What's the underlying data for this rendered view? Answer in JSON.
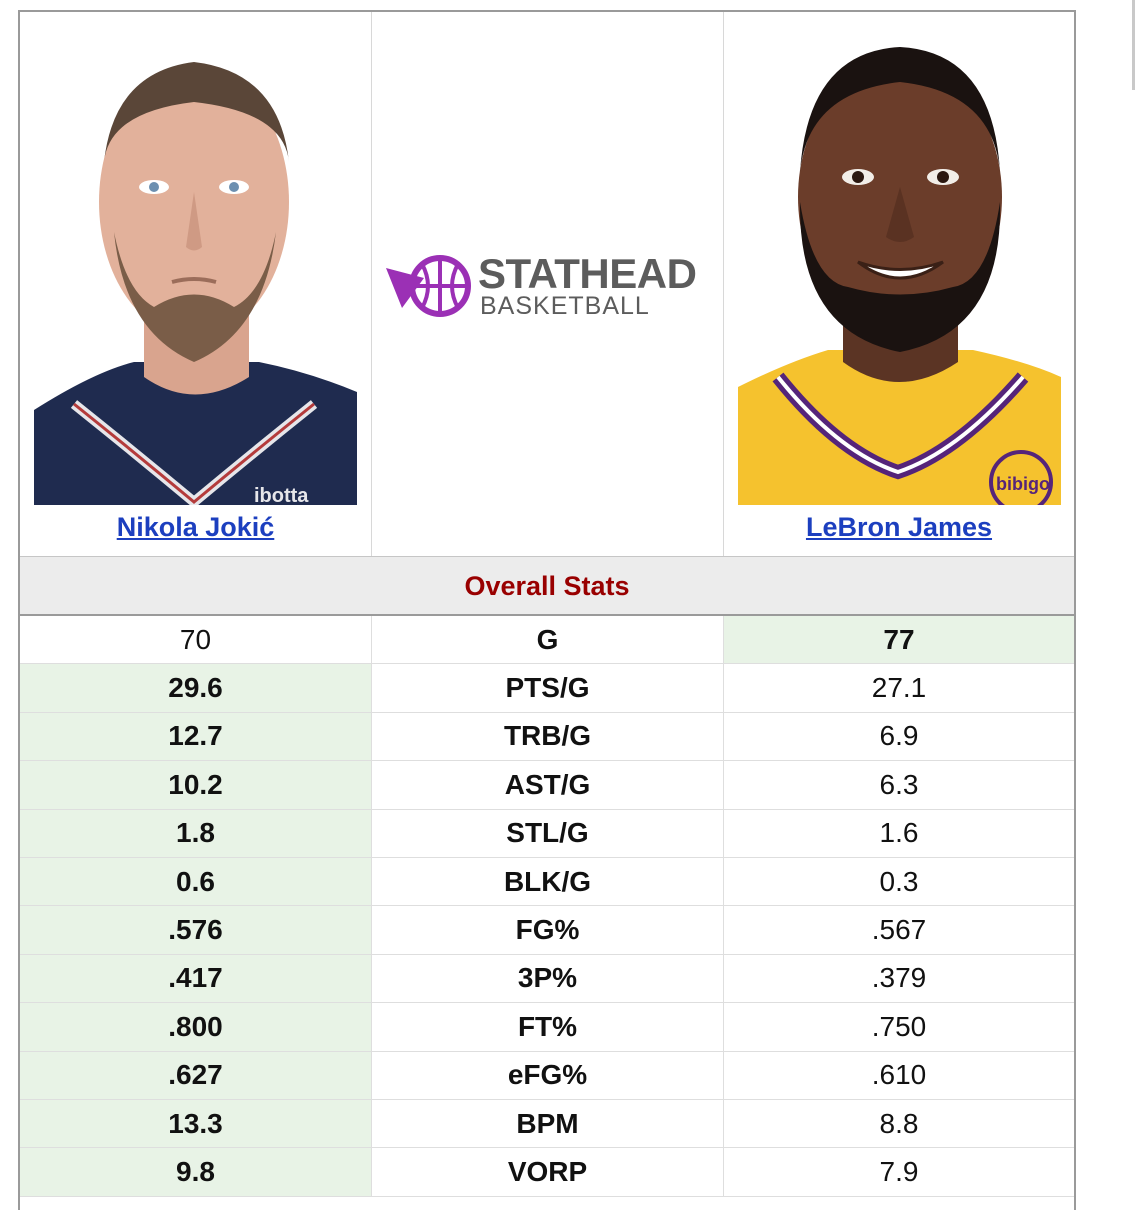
{
  "players": {
    "left": {
      "name": "Nikola Jokić",
      "jersey_text": "ibotta"
    },
    "right": {
      "name": "LeBron James",
      "jersey_text": "bibigo"
    }
  },
  "logo": {
    "line1": "STATHEAD",
    "line2": "BASKETBALL"
  },
  "section_title": "Overall Stats",
  "stats": [
    {
      "stat": "G",
      "left": "70",
      "right": "77",
      "winner": "right"
    },
    {
      "stat": "PTS/G",
      "left": "29.6",
      "right": "27.1",
      "winner": "left"
    },
    {
      "stat": "TRB/G",
      "left": "12.7",
      "right": "6.9",
      "winner": "left"
    },
    {
      "stat": "AST/G",
      "left": "10.2",
      "right": "6.3",
      "winner": "left"
    },
    {
      "stat": "STL/G",
      "left": "1.8",
      "right": "1.6",
      "winner": "left"
    },
    {
      "stat": "BLK/G",
      "left": "0.6",
      "right": "0.3",
      "winner": "left"
    },
    {
      "stat": "FG%",
      "left": ".576",
      "right": ".567",
      "winner": "left"
    },
    {
      "stat": "3P%",
      "left": ".417",
      "right": ".379",
      "winner": "left"
    },
    {
      "stat": "FT%",
      "left": ".800",
      "right": ".750",
      "winner": "left"
    },
    {
      "stat": "eFG%",
      "left": ".627",
      "right": ".610",
      "winner": "left"
    },
    {
      "stat": "BPM",
      "left": "13.3",
      "right": "8.8",
      "winner": "left"
    },
    {
      "stat": "VORP",
      "left": "9.8",
      "right": "7.9",
      "winner": "left"
    }
  ],
  "colors": {
    "link": "#1c3fbf",
    "section_title": "#990000",
    "winner_bg": "#e8f3e6",
    "logo_purple": "#9b30b5"
  }
}
